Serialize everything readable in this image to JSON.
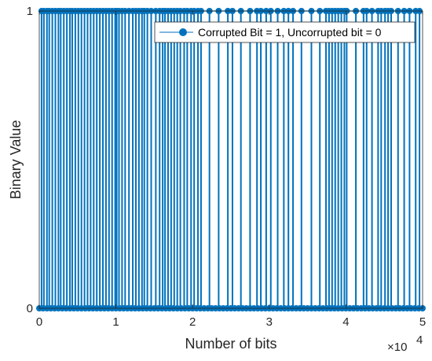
{
  "chart_data": {
    "type": "line",
    "xlabel": "Number of bits",
    "ylabel": "Binary Value",
    "x_exponent_label": "×10",
    "x_exponent_power": "4",
    "xlim": [
      0,
      50000
    ],
    "ylim": [
      0,
      1
    ],
    "x_ticks": [
      0,
      10000,
      20000,
      30000,
      40000,
      50000
    ],
    "x_tick_labels": [
      "0",
      "1",
      "2",
      "3",
      "4",
      "5"
    ],
    "y_ticks": [
      0,
      1
    ],
    "y_tick_labels": [
      "0",
      "1"
    ],
    "grid": false,
    "legend_position": "top-right",
    "series": [
      {
        "name": "Corrupted Bit = 1, Uncorrupted bit = 0",
        "color": "#0072BD",
        "marker": "circle",
        "corrupted_bit_positions": [
          300,
          600,
          1000,
          1300,
          1700,
          2100,
          2500,
          2800,
          3200,
          3600,
          4000,
          4300,
          4700,
          5100,
          5500,
          5900,
          6300,
          6700,
          7100,
          7500,
          7900,
          8300,
          8700,
          9100,
          9500,
          9900,
          10100,
          10400,
          10800,
          11200,
          11700,
          12200,
          12600,
          13000,
          13400,
          13700,
          14100,
          14600,
          15200,
          15700,
          16100,
          16400,
          16800,
          17200,
          17600,
          18000,
          18400,
          18900,
          19300,
          19800,
          20200,
          20700,
          21100,
          22200,
          23400,
          24600,
          25200,
          26300,
          27500,
          28400,
          28900,
          29600,
          30200,
          31100,
          31900,
          32500,
          33100,
          34200,
          35500,
          36600,
          37400,
          37800,
          38200,
          38600,
          39000,
          39400,
          39800,
          40100,
          41300,
          42300,
          42700,
          43400,
          44200,
          44600,
          45100,
          45500,
          45900,
          46800,
          47600,
          48300,
          49100,
          49600
        ]
      }
    ]
  }
}
